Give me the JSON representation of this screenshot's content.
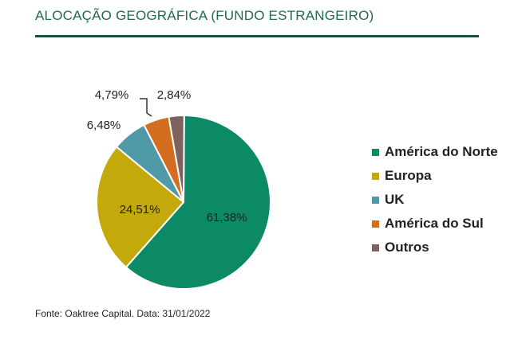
{
  "title": "ALOCAÇÃO GEOGRÁFICA (FUNDO ESTRANGEIRO)",
  "source": "Fonte: Oaktree Capital. Data: 31/01/2022",
  "chart_data": {
    "type": "pie",
    "title": "",
    "legend_position": "right",
    "slices": [
      {
        "name": "América do Norte",
        "value": 61.38,
        "label": "61,38%",
        "color": "#0c8a65"
      },
      {
        "name": "Europa",
        "value": 24.51,
        "label": "24,51%",
        "color": "#c4a90b"
      },
      {
        "name": "UK",
        "value": 6.48,
        "label": "6,48%",
        "color": "#4f9aa6"
      },
      {
        "name": "América do Sul",
        "value": 4.79,
        "label": "4,79%",
        "color": "#d36d20"
      },
      {
        "name": "Outros",
        "value": 2.84,
        "label": "2,84%",
        "color": "#7d625e"
      }
    ]
  }
}
